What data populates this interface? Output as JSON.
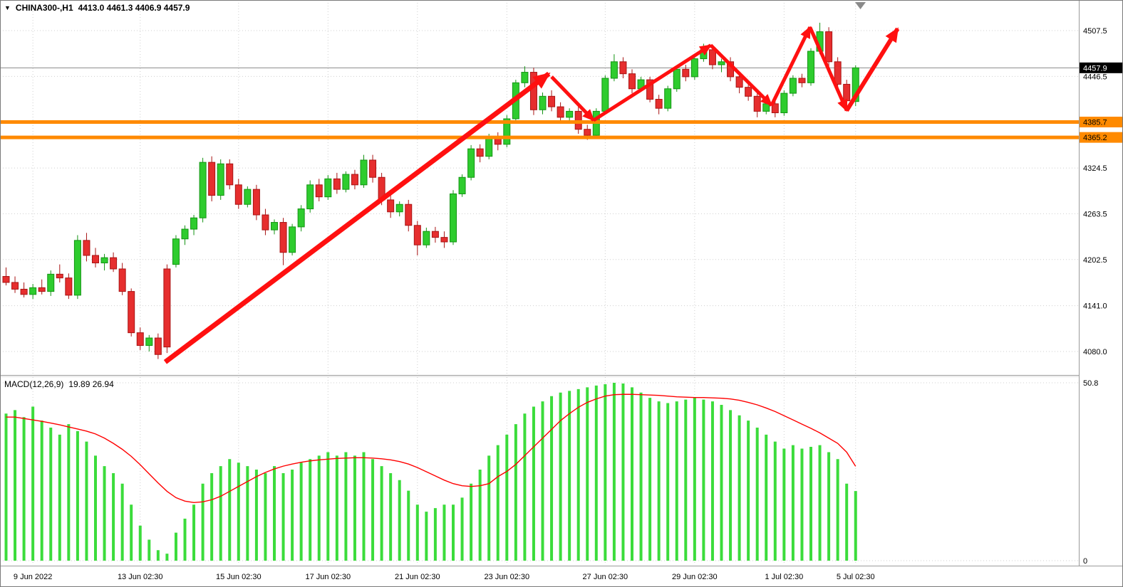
{
  "header": {
    "dropdown_icon": "▼",
    "symbol": "CHINA300-,H1",
    "ohlc": "4413.0 4461.3 4406.9 4457.9"
  },
  "macd_header": {
    "label": "MACD(12,26,9)",
    "values": "19.89 26.94"
  },
  "colors": {
    "bull": "#2ecc2e",
    "bull_border": "#149414",
    "bear": "#e62e2e",
    "bear_border": "#a81414",
    "histogram": "#3bdc3b",
    "signal_line": "#ff0000",
    "level": "#ff8a00",
    "arrow": "#ff1010",
    "current_line": "#8c8c8c",
    "grid": "#cfcfcf",
    "axis_text": "#000000",
    "divider": "#9a9a9a"
  },
  "chart_data": [
    {
      "type": "candlestick",
      "symbol": "CHINA300-",
      "timeframe": "H1",
      "ohlc_header": "4413.0 4461.3 4406.9 4457.9",
      "last": {
        "open": 4413.0,
        "high": 4461.3,
        "low": 4406.9,
        "close": 4457.9
      },
      "current_price": "4457.9",
      "ylim": [
        4049,
        4548
      ],
      "y_ticks": [
        "4507.5",
        "4446.5",
        "4324.5",
        "4263.5",
        "4202.5",
        "4141.0",
        "4080.0"
      ],
      "x_ticks": {
        "labels": [
          "9 Jun 2022",
          "13 Jun 02:30",
          "15 Jun 02:30",
          "17 Jun 02:30",
          "21 Jun 02:30",
          "23 Jun 02:30",
          "27 Jun 02:30",
          "29 Jun 02:30",
          "1 Jul 02:30",
          "5 Jul 02:30"
        ],
        "candle_index": [
          3,
          15,
          26,
          36,
          46,
          56,
          67,
          77,
          87,
          95
        ]
      },
      "levels": [
        {
          "label": "4385.7",
          "value": 4385.7
        },
        {
          "label": "4365.2",
          "value": 4365.2
        }
      ],
      "trend_arrows": [
        {
          "from": [
            17.8,
            4066
          ],
          "to": [
            60.7,
            4450
          ],
          "width": 7
        },
        {
          "from": [
            61.0,
            4446
          ],
          "to": [
            65.7,
            4388
          ],
          "width": 5
        },
        {
          "from": [
            65.7,
            4388
          ],
          "to": [
            78.8,
            4488
          ],
          "width": 5
        },
        {
          "from": [
            78.8,
            4488
          ],
          "to": [
            85.6,
            4408
          ],
          "width": 5
        },
        {
          "from": [
            85.6,
            4408
          ],
          "to": [
            89.9,
            4512
          ],
          "width": 5
        },
        {
          "from": [
            89.9,
            4512
          ],
          "to": [
            94.0,
            4401
          ],
          "width": 5
        },
        {
          "from": [
            94.0,
            4401
          ],
          "to": [
            99.7,
            4510
          ],
          "width": 6
        }
      ],
      "candles": [
        [
          4180,
          4192,
          4168,
          4172
        ],
        [
          4172,
          4180,
          4158,
          4163
        ],
        [
          4163,
          4172,
          4152,
          4156
        ],
        [
          4156,
          4170,
          4150,
          4165
        ],
        [
          4165,
          4176,
          4156,
          4160
        ],
        [
          4160,
          4188,
          4154,
          4183
        ],
        [
          4183,
          4196,
          4172,
          4178
        ],
        [
          4178,
          4184,
          4150,
          4155
        ],
        [
          4155,
          4235,
          4150,
          4228
        ],
        [
          4228,
          4238,
          4200,
          4208
        ],
        [
          4208,
          4218,
          4192,
          4198
        ],
        [
          4198,
          4210,
          4188,
          4205
        ],
        [
          4205,
          4212,
          4186,
          4190
        ],
        [
          4190,
          4198,
          4155,
          4160
        ],
        [
          4160,
          4164,
          4100,
          4105
        ],
        [
          4105,
          4112,
          4082,
          4088
        ],
        [
          4088,
          4102,
          4080,
          4098
        ],
        [
          4098,
          4104,
          4070,
          4076
        ],
        [
          4190,
          4196,
          4078,
          4086
        ],
        [
          4196,
          4235,
          4192,
          4230
        ],
        [
          4230,
          4248,
          4222,
          4243
        ],
        [
          4243,
          4262,
          4235,
          4258
        ],
        [
          4258,
          4338,
          4252,
          4332
        ],
        [
          4332,
          4340,
          4280,
          4288
        ],
        [
          4288,
          4336,
          4282,
          4330
        ],
        [
          4330,
          4336,
          4296,
          4302
        ],
        [
          4302,
          4310,
          4270,
          4276
        ],
        [
          4276,
          4300,
          4272,
          4296
        ],
        [
          4296,
          4302,
          4255,
          4262
        ],
        [
          4262,
          4270,
          4235,
          4242
        ],
        [
          4242,
          4256,
          4236,
          4252
        ],
        [
          4252,
          4258,
          4195,
          4212
        ],
        [
          4212,
          4250,
          4208,
          4246
        ],
        [
          4246,
          4275,
          4240,
          4270
        ],
        [
          4270,
          4308,
          4265,
          4302
        ],
        [
          4302,
          4310,
          4280,
          4286
        ],
        [
          4286,
          4315,
          4282,
          4310
        ],
        [
          4310,
          4318,
          4290,
          4296
        ],
        [
          4296,
          4320,
          4292,
          4316
        ],
        [
          4316,
          4322,
          4296,
          4302
        ],
        [
          4302,
          4342,
          4298,
          4335
        ],
        [
          4335,
          4342,
          4305,
          4312
        ],
        [
          4312,
          4318,
          4275,
          4282
        ],
        [
          4282,
          4290,
          4258,
          4266
        ],
        [
          4266,
          4280,
          4260,
          4276
        ],
        [
          4276,
          4282,
          4240,
          4248
        ],
        [
          4248,
          4254,
          4208,
          4222
        ],
        [
          4222,
          4245,
          4218,
          4240
        ],
        [
          4240,
          4246,
          4225,
          4232
        ],
        [
          4232,
          4240,
          4218,
          4226
        ],
        [
          4226,
          4295,
          4222,
          4290
        ],
        [
          4290,
          4316,
          4286,
          4312
        ],
        [
          4312,
          4355,
          4308,
          4350
        ],
        [
          4350,
          4356,
          4332,
          4340
        ],
        [
          4340,
          4370,
          4336,
          4366
        ],
        [
          4366,
          4372,
          4348,
          4356
        ],
        [
          4356,
          4395,
          4352,
          4390
        ],
        [
          4390,
          4442,
          4386,
          4438
        ],
        [
          4438,
          4460,
          4432,
          4452
        ],
        [
          4452,
          4458,
          4395,
          4402
        ],
        [
          4402,
          4425,
          4396,
          4420
        ],
        [
          4420,
          4428,
          4400,
          4406
        ],
        [
          4406,
          4412,
          4385,
          4392
        ],
        [
          4392,
          4404,
          4386,
          4400
        ],
        [
          4400,
          4406,
          4370,
          4376
        ],
        [
          4376,
          4382,
          4362,
          4368
        ],
        [
          4368,
          4404,
          4364,
          4400
        ],
        [
          4400,
          4448,
          4396,
          4444
        ],
        [
          4444,
          4476,
          4440,
          4466
        ],
        [
          4466,
          4472,
          4444,
          4450
        ],
        [
          4450,
          4456,
          4424,
          4430
        ],
        [
          4430,
          4446,
          4426,
          4442
        ],
        [
          4442,
          4446,
          4412,
          4416
        ],
        [
          4416,
          4422,
          4396,
          4404
        ],
        [
          4404,
          4434,
          4400,
          4430
        ],
        [
          4430,
          4460,
          4426,
          4456
        ],
        [
          4456,
          4462,
          4440,
          4446
        ],
        [
          4446,
          4474,
          4442,
          4470
        ],
        [
          4470,
          4490,
          4466,
          4482
        ],
        [
          4482,
          4488,
          4456,
          4462
        ],
        [
          4462,
          4470,
          4452,
          4466
        ],
        [
          4466,
          4472,
          4440,
          4446
        ],
        [
          4446,
          4452,
          4424,
          4432
        ],
        [
          4432,
          4438,
          4414,
          4420
        ],
        [
          4420,
          4426,
          4392,
          4400
        ],
        [
          4400,
          4414,
          4396,
          4410
        ],
        [
          4410,
          4416,
          4392,
          4398
        ],
        [
          4398,
          4428,
          4394,
          4424
        ],
        [
          4424,
          4448,
          4420,
          4444
        ],
        [
          4444,
          4450,
          4432,
          4438
        ],
        [
          4438,
          4484,
          4434,
          4480
        ],
        [
          4480,
          4518,
          4476,
          4506
        ],
        [
          4506,
          4512,
          4460,
          4466
        ],
        [
          4466,
          4472,
          4430,
          4436
        ],
        [
          4436,
          4442,
          4406,
          4414
        ],
        [
          4413.0,
          4461.3,
          4406.9,
          4457.9
        ]
      ]
    },
    {
      "type": "bar",
      "name": "MACD",
      "params": "12,26,9",
      "label": "MACD(12,26,9)",
      "values_text": "19.89 26.94",
      "macd_value": 19.89,
      "signal_value": 26.94,
      "y_ticks": [
        "50.8",
        "0"
      ],
      "ylim": [
        0,
        52.4
      ],
      "histogram": [
        42,
        43,
        41,
        44,
        40,
        38,
        36,
        39,
        37,
        34,
        30,
        27,
        25,
        22,
        16,
        10,
        6,
        3,
        2,
        8,
        12,
        16,
        22,
        25,
        27,
        29,
        28,
        27,
        26,
        25,
        27,
        25,
        26,
        28,
        29,
        30,
        31,
        30,
        31,
        30,
        31,
        29,
        27,
        25,
        23,
        20,
        16,
        14,
        15,
        16,
        16,
        18,
        22,
        26,
        30,
        33,
        36,
        39,
        42,
        44,
        45.5,
        47,
        48,
        48.5,
        49,
        49.5,
        50,
        50.4,
        50.8,
        50.6,
        49.5,
        48,
        46.5,
        45.5,
        45,
        45.5,
        46,
        46.5,
        46,
        45.5,
        44.5,
        43,
        41.5,
        40,
        38,
        36,
        34,
        32,
        33,
        32,
        32.5,
        33,
        31,
        29,
        22,
        19.89
      ],
      "signal": [
        41,
        41,
        40.6,
        40.2,
        39.8,
        39.3,
        38.8,
        38.2,
        37.6,
        37,
        36.2,
        35,
        33.5,
        31.8,
        29.8,
        27.4,
        24.8,
        22.2,
        19.8,
        18,
        17,
        16.6,
        16.8,
        17.4,
        18.4,
        19.8,
        21.2,
        22.6,
        24,
        25.2,
        26.2,
        27,
        27.6,
        28.1,
        28.5,
        28.8,
        29,
        29.2,
        29.3,
        29.4,
        29.4,
        29.3,
        29.1,
        28.8,
        28.3,
        27.6,
        26.6,
        25.4,
        24.2,
        23,
        22,
        21.4,
        21.2,
        21.4,
        22,
        24,
        25.5,
        27.5,
        30,
        32.5,
        35,
        37.5,
        40,
        42,
        43.8,
        45.2,
        46.2,
        47,
        47.4,
        47.5,
        47.5,
        47.4,
        47.3,
        47.2,
        47,
        46.8,
        46.7,
        46.6,
        46.6,
        46.5,
        46.4,
        46.2,
        45.8,
        45.2,
        44.5,
        43.6,
        42.6,
        41.4,
        40.2,
        39,
        37.8,
        36.5,
        35,
        33.5,
        31,
        26.94
      ]
    }
  ]
}
